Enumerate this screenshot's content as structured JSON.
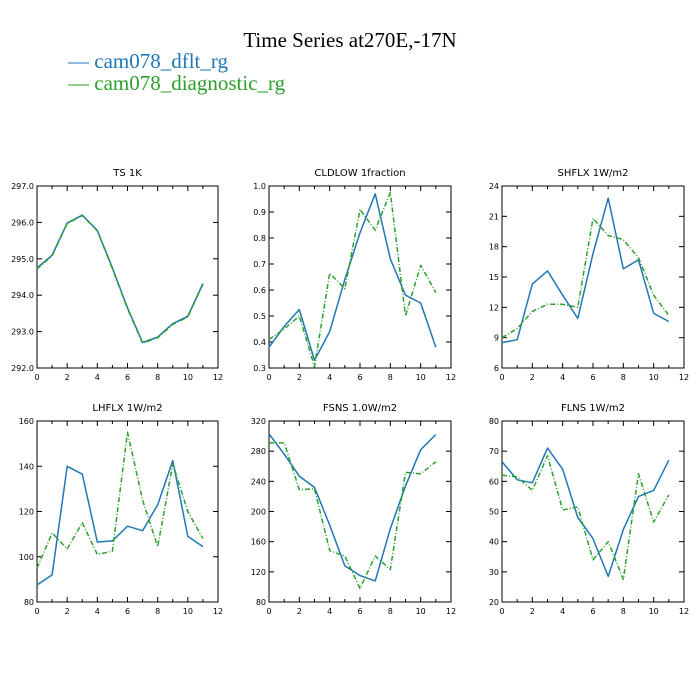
{
  "page_title": "Time Series at270E,-17N",
  "legend": [
    {
      "label": "cam078_dflt_rg",
      "color": "#1f77b4",
      "dash": "solid"
    },
    {
      "label": "cam078_diagnostic_rg",
      "color": "#2ca02c",
      "dash": "dashed"
    }
  ],
  "chart_data": [
    {
      "type": "line",
      "title": "TS    1K",
      "x": [
        0,
        1,
        2,
        3,
        4,
        5,
        6,
        7,
        8,
        9,
        10,
        11
      ],
      "xlim": [
        0,
        12
      ],
      "xticks": [
        0,
        2,
        4,
        6,
        8,
        10,
        12
      ],
      "ylim": [
        292.0,
        297.0
      ],
      "yticks": [
        "292.0",
        "293.0",
        "294.0",
        "295.0",
        "296.0",
        "297.0"
      ],
      "series": [
        {
          "name": "cam078_dflt_rg",
          "color": "#1f77b4",
          "values": [
            294.75,
            295.1,
            295.98,
            296.2,
            295.78,
            294.75,
            293.65,
            292.7,
            292.85,
            293.22,
            293.42,
            294.32
          ]
        },
        {
          "name": "cam078_diagnostic_rg",
          "color": "#2ca02c",
          "values": [
            294.72,
            295.08,
            295.97,
            296.19,
            295.77,
            294.73,
            293.63,
            292.68,
            292.83,
            293.2,
            293.4,
            294.3
          ]
        }
      ]
    },
    {
      "type": "line",
      "title": "CLDLOW    1fraction",
      "x": [
        0,
        1,
        2,
        3,
        4,
        5,
        6,
        7,
        8,
        9,
        10,
        11
      ],
      "xlim": [
        0,
        12
      ],
      "xticks": [
        0,
        2,
        4,
        6,
        8,
        10,
        12
      ],
      "ylim": [
        0.3,
        1.0
      ],
      "yticks": [
        "0.3",
        "0.4",
        "0.5",
        "0.6",
        "0.7",
        "0.8",
        "0.9",
        "1.0"
      ],
      "series": [
        {
          "name": "cam078_dflt_rg",
          "color": "#1f77b4",
          "values": [
            0.38,
            0.46,
            0.525,
            0.33,
            0.44,
            0.64,
            0.82,
            0.97,
            0.72,
            0.58,
            0.55,
            0.38
          ]
        },
        {
          "name": "cam078_diagnostic_rg",
          "color": "#2ca02c",
          "values": [
            0.41,
            0.45,
            0.5,
            0.305,
            0.665,
            0.605,
            0.91,
            0.83,
            0.975,
            0.5,
            0.695,
            0.59
          ]
        }
      ]
    },
    {
      "type": "line",
      "title": "SHFLX    1W/m2",
      "x": [
        0,
        1,
        2,
        3,
        4,
        5,
        6,
        7,
        8,
        9,
        10,
        11
      ],
      "xlim": [
        0,
        12
      ],
      "xticks": [
        0,
        2,
        4,
        6,
        8,
        10,
        12
      ],
      "ylim": [
        6,
        24
      ],
      "yticks": [
        "6",
        "9",
        "12",
        "15",
        "18",
        "21",
        "24"
      ],
      "series": [
        {
          "name": "cam078_dflt_rg",
          "color": "#1f77b4",
          "values": [
            8.5,
            8.8,
            14.3,
            15.6,
            13.2,
            10.9,
            17.3,
            22.8,
            15.8,
            16.7,
            11.4,
            10.6
          ]
        },
        {
          "name": "cam078_diagnostic_rg",
          "color": "#2ca02c",
          "values": [
            9.0,
            9.9,
            11.6,
            12.3,
            12.3,
            12.0,
            20.8,
            19.1,
            18.7,
            16.9,
            13.2,
            11.2
          ]
        }
      ]
    },
    {
      "type": "line",
      "title": "LHFLX    1W/m2",
      "x": [
        0,
        1,
        2,
        3,
        4,
        5,
        6,
        7,
        8,
        9,
        10,
        11
      ],
      "xlim": [
        0,
        12
      ],
      "xticks": [
        0,
        2,
        4,
        6,
        8,
        10,
        12
      ],
      "ylim": [
        80,
        160
      ],
      "yticks": [
        "80",
        "100",
        "120",
        "140",
        "160"
      ],
      "series": [
        {
          "name": "cam078_dflt_rg",
          "color": "#1f77b4",
          "values": [
            87.5,
            92,
            140,
            136.5,
            106.5,
            107,
            113.5,
            111.5,
            123,
            142.5,
            109,
            104.5
          ]
        },
        {
          "name": "cam078_diagnostic_rg",
          "color": "#2ca02c",
          "values": [
            95,
            110.5,
            103.5,
            115,
            101,
            102.5,
            155,
            125,
            104.5,
            141,
            120,
            108
          ]
        }
      ]
    },
    {
      "type": "line",
      "title": "FSNS    1.0W/m2",
      "x": [
        0,
        1,
        2,
        3,
        4,
        5,
        6,
        7,
        8,
        9,
        10,
        11
      ],
      "xlim": [
        0,
        12
      ],
      "xticks": [
        0,
        2,
        4,
        6,
        8,
        10,
        12
      ],
      "ylim": [
        80,
        320
      ],
      "yticks": [
        "80",
        "120",
        "160",
        "200",
        "240",
        "280",
        "320"
      ],
      "series": [
        {
          "name": "cam078_dflt_rg",
          "color": "#1f77b4",
          "values": [
            303,
            276,
            247,
            232,
            182,
            128,
            115,
            108,
            177,
            234,
            282,
            302
          ]
        },
        {
          "name": "cam078_diagnostic_rg",
          "color": "#2ca02c",
          "values": [
            291,
            291,
            229,
            230,
            148,
            141,
            98,
            141,
            123,
            252,
            250,
            266
          ]
        }
      ]
    },
    {
      "type": "line",
      "title": "FLNS    1W/m2",
      "x": [
        0,
        1,
        2,
        3,
        4,
        5,
        6,
        7,
        8,
        9,
        10,
        11
      ],
      "xlim": [
        0,
        12
      ],
      "xticks": [
        0,
        2,
        4,
        6,
        8,
        10,
        12
      ],
      "ylim": [
        20,
        80
      ],
      "yticks": [
        "20",
        "30",
        "40",
        "50",
        "60",
        "70",
        "80"
      ],
      "series": [
        {
          "name": "cam078_dflt_rg",
          "color": "#1f77b4",
          "values": [
            66.5,
            60.5,
            59.5,
            71,
            64,
            48,
            41,
            28.5,
            44,
            55,
            57,
            67
          ]
        },
        {
          "name": "cam078_diagnostic_rg",
          "color": "#2ca02c",
          "values": [
            62,
            61.5,
            57,
            68.5,
            50.5,
            51.5,
            34,
            40,
            27.5,
            62.5,
            46.5,
            55.5
          ]
        }
      ]
    }
  ]
}
